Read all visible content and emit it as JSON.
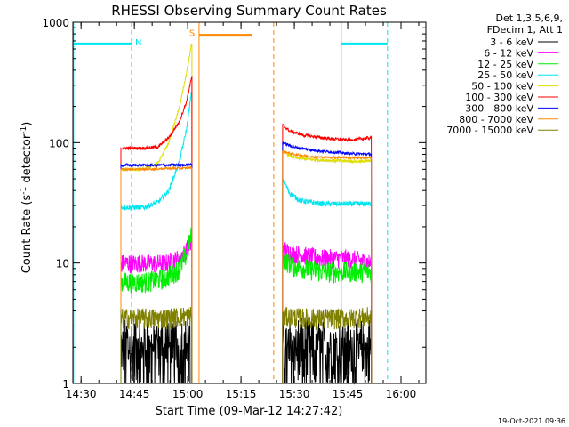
{
  "chart_data": {
    "type": "line",
    "title": "RHESSI Observing Summary Count Rates",
    "xlabel": "Start Time (09-Mar-12 14:27:42)",
    "ylabel_main": "Count Rate (s",
    "ylabel_sup1": "-1",
    "ylabel_mid": " detector",
    "ylabel_sup2": "-1",
    "ylabel_end": ")",
    "y_scale": "log",
    "ylim": [
      1,
      1000
    ],
    "xlim": [
      "14:27:42",
      "16:07:00"
    ],
    "x_ticks": [
      {
        "label": "14:30",
        "min": 2.3
      },
      {
        "label": "14:45",
        "min": 17.3
      },
      {
        "label": "15:00",
        "min": 32.3
      },
      {
        "label": "15:15",
        "min": 47.3
      },
      {
        "label": "15:30",
        "min": 62.3
      },
      {
        "label": "15:45",
        "min": 77.3
      },
      {
        "label": "16:00",
        "min": 92.3
      }
    ],
    "y_ticks": [
      {
        "label": "1",
        "value": 1
      },
      {
        "label": "10",
        "value": 10
      },
      {
        "label": "100",
        "value": 100
      },
      {
        "label": "1000",
        "value": 1000
      }
    ],
    "legend_header": [
      "Det 1,3,5,6,9,",
      "FDecim 1, Att 1"
    ],
    "series": [
      {
        "name": "3 - 6 keV",
        "color": "#000000",
        "seg1": [
          [
            13.5,
            1.6
          ],
          [
            20,
            1.6
          ],
          [
            24,
            1.6
          ],
          [
            28,
            1.7
          ],
          [
            33,
            1.8
          ]
        ],
        "seg2": [
          [
            59,
            1.6
          ],
          [
            65,
            1.6
          ],
          [
            72,
            1.6
          ],
          [
            78,
            1.6
          ],
          [
            84,
            1.6
          ]
        ],
        "noise": 0.5,
        "lo": 1.0,
        "hi": 3.9
      },
      {
        "name": "6 - 12 keV",
        "color": "#ff00ff",
        "seg1": [
          [
            13.5,
            10
          ],
          [
            20,
            10
          ],
          [
            26,
            10
          ],
          [
            30,
            11
          ],
          [
            32,
            13
          ],
          [
            33.5,
            15
          ]
        ],
        "seg2": [
          [
            59,
            13
          ],
          [
            62,
            12
          ],
          [
            70,
            11
          ],
          [
            78,
            11
          ],
          [
            84,
            10
          ]
        ],
        "noise": 0.18
      },
      {
        "name": "12 - 25 keV",
        "color": "#00ee00",
        "seg1": [
          [
            13.5,
            7
          ],
          [
            20,
            7
          ],
          [
            26,
            7.5
          ],
          [
            30,
            9
          ],
          [
            32,
            12
          ],
          [
            33.5,
            18
          ]
        ],
        "seg2": [
          [
            59,
            11
          ],
          [
            62,
            9.5
          ],
          [
            70,
            8.5
          ],
          [
            78,
            8.5
          ],
          [
            84,
            8.5
          ]
        ],
        "noise": 0.2
      },
      {
        "name": "25 - 50 keV",
        "color": "#00e5ee",
        "seg1": [
          [
            13.5,
            29
          ],
          [
            20,
            29
          ],
          [
            24,
            32
          ],
          [
            27,
            40
          ],
          [
            30,
            70
          ],
          [
            32,
            130
          ],
          [
            33.5,
            280
          ]
        ],
        "seg2": [
          [
            59,
            50
          ],
          [
            61,
            38
          ],
          [
            64,
            33
          ],
          [
            70,
            31
          ],
          [
            78,
            31
          ],
          [
            84,
            31
          ]
        ],
        "noise": 0.05
      },
      {
        "name": "50 - 100 keV",
        "color": "#dddd00",
        "seg1": [
          [
            13.5,
            60
          ],
          [
            20,
            60
          ],
          [
            24,
            68
          ],
          [
            27,
            100
          ],
          [
            30,
            200
          ],
          [
            32,
            380
          ],
          [
            33.5,
            680
          ]
        ],
        "seg2": [
          [
            59,
            85
          ],
          [
            62,
            75
          ],
          [
            68,
            72
          ],
          [
            78,
            70
          ],
          [
            84,
            70
          ]
        ],
        "noise": 0.03
      },
      {
        "name": "100 - 300 keV",
        "color": "#ff0000",
        "seg1": [
          [
            13.5,
            90
          ],
          [
            20,
            90
          ],
          [
            24,
            92
          ],
          [
            27,
            110
          ],
          [
            30,
            150
          ],
          [
            32,
            220
          ],
          [
            33.5,
            360
          ]
        ],
        "seg2": [
          [
            59,
            140
          ],
          [
            61,
            125
          ],
          [
            65,
            115
          ],
          [
            72,
            108
          ],
          [
            78,
            105
          ],
          [
            84,
            110
          ]
        ],
        "noise": 0.03
      },
      {
        "name": "300 - 800 keV",
        "color": "#0000ff",
        "seg1": [
          [
            13.5,
            65
          ],
          [
            20,
            65
          ],
          [
            26,
            65
          ],
          [
            30,
            65
          ],
          [
            33.5,
            66
          ]
        ],
        "seg2": [
          [
            59,
            100
          ],
          [
            62,
            92
          ],
          [
            68,
            86
          ],
          [
            78,
            81
          ],
          [
            84,
            80
          ]
        ],
        "noise": 0.025
      },
      {
        "name": "800 - 7000 keV",
        "color": "#ff8800",
        "seg1": [
          [
            13.5,
            60
          ],
          [
            20,
            60
          ],
          [
            26,
            61
          ],
          [
            30,
            61
          ],
          [
            33.5,
            62
          ]
        ],
        "seg2": [
          [
            59,
            85
          ],
          [
            62,
            80
          ],
          [
            68,
            76
          ],
          [
            78,
            75
          ],
          [
            84,
            75
          ]
        ],
        "noise": 0.02
      },
      {
        "name": "7000 - 15000 keV",
        "color": "#808000",
        "seg1": [
          [
            13.5,
            3.5
          ],
          [
            20,
            3.5
          ],
          [
            26,
            3.5
          ],
          [
            30,
            3.6
          ],
          [
            33.5,
            3.7
          ]
        ],
        "seg2": [
          [
            59,
            3.6
          ],
          [
            65,
            3.5
          ],
          [
            72,
            3.5
          ],
          [
            78,
            3.5
          ],
          [
            84,
            3.6
          ]
        ],
        "noise": 0.2
      }
    ],
    "annotations": {
      "N": {
        "label": "N",
        "color": "#00e5ee"
      },
      "S": {
        "label": "S",
        "color": "#ff8800"
      }
    },
    "timestamp": "19-Oct-2021 09:36"
  }
}
